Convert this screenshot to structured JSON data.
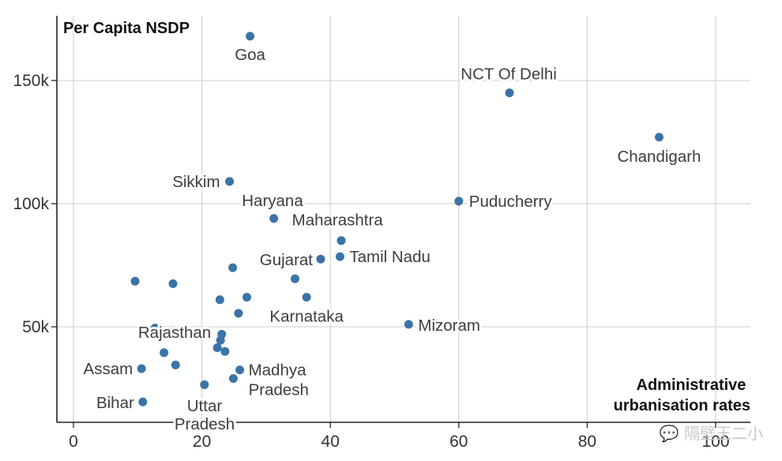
{
  "chart_data": {
    "type": "scatter",
    "ylabel": "Per Capita NSDP",
    "xlabel_lines": [
      "Administrative",
      "urbanisation rates"
    ],
    "xlim": [
      -2,
      105
    ],
    "ylim": [
      13000,
      175000
    ],
    "x_ticks": [
      0,
      20,
      40,
      60,
      80,
      100
    ],
    "x_tick_labels": [
      "0",
      "20",
      "40",
      "60",
      "80",
      "100"
    ],
    "y_ticks": [
      50000,
      100000,
      150000
    ],
    "y_tick_labels": [
      "50k",
      "100k",
      "150k"
    ],
    "grid": true,
    "points": [
      {
        "x": 27.5,
        "y": 168000,
        "label": [
          "Goa"
        ]
      },
      {
        "x": 67.9,
        "y": 145000,
        "label": [
          "NCT Of Delhi"
        ]
      },
      {
        "x": 91.2,
        "y": 127000,
        "label": [
          "Chandigarh"
        ]
      },
      {
        "x": 24.3,
        "y": 109000,
        "label": [
          "Sikkim"
        ]
      },
      {
        "x": 60.0,
        "y": 101000,
        "label": [
          "Puducherry"
        ]
      },
      {
        "x": 31.2,
        "y": 94000,
        "label": [
          "Maharashtra"
        ]
      },
      {
        "x": 41.7,
        "y": 85000,
        "label": []
      },
      {
        "x": 38.5,
        "y": 77500,
        "label": [
          "Gujarat"
        ]
      },
      {
        "x": 41.5,
        "y": 78500,
        "label": [
          "Tamil Nadu"
        ]
      },
      {
        "x": 24.8,
        "y": 74000,
        "label": []
      },
      {
        "x": 34.5,
        "y": 69500,
        "label": []
      },
      {
        "x": 9.6,
        "y": 68500,
        "label": []
      },
      {
        "x": 15.5,
        "y": 67500,
        "label": []
      },
      {
        "x": 27.0,
        "y": 62000,
        "label": []
      },
      {
        "x": 22.8,
        "y": 61000,
        "label": []
      },
      {
        "x": 36.3,
        "y": 62000,
        "label": [
          "Karnataka"
        ]
      },
      {
        "x": 25.7,
        "y": 55500,
        "label": []
      },
      {
        "x": 52.2,
        "y": 51000,
        "label": [
          "Mizoram"
        ]
      },
      {
        "x": 12.7,
        "y": 49500,
        "label": []
      },
      {
        "x": 23.1,
        "y": 47000,
        "label": []
      },
      {
        "x": 22.9,
        "y": 44500,
        "label": [
          "Rajasthan"
        ]
      },
      {
        "x": 22.4,
        "y": 41500,
        "label": []
      },
      {
        "x": 23.6,
        "y": 40000,
        "label": []
      },
      {
        "x": 14.1,
        "y": 39500,
        "label": []
      },
      {
        "x": 10.6,
        "y": 33000,
        "label": [
          "Assam"
        ]
      },
      {
        "x": 15.9,
        "y": 34500,
        "label": []
      },
      {
        "x": 25.9,
        "y": 32500,
        "label": [
          "Madhya",
          "Pradesh"
        ]
      },
      {
        "x": 24.9,
        "y": 29000,
        "label": []
      },
      {
        "x": 20.4,
        "y": 26500,
        "label": []
      },
      {
        "x": 10.8,
        "y": 19500,
        "label": [
          "Bihar"
        ]
      }
    ],
    "extra_labels": [
      {
        "text": [
          "Haryana"
        ]
      },
      {
        "text": [
          "Uttar",
          "Pradesh"
        ]
      }
    ]
  },
  "watermark": "💬 隔壁王二小"
}
